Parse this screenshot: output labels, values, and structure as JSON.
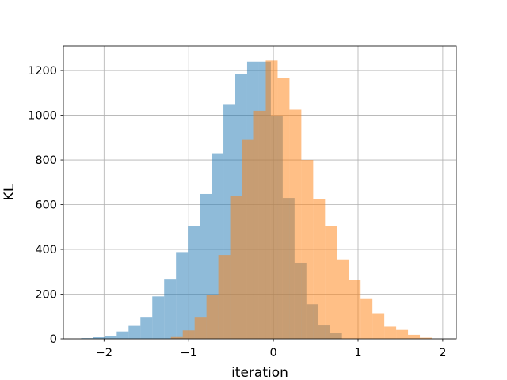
{
  "chart_data": {
    "type": "bar",
    "title": "",
    "xlabel": "iteration",
    "ylabel": "KL",
    "xlim": [
      -2.48,
      2.16
    ],
    "ylim": [
      0,
      1310
    ],
    "xticks": [
      -2,
      -1,
      0,
      1,
      2
    ],
    "xtick_labels": [
      "−2",
      "−1",
      "0",
      "1",
      "2"
    ],
    "yticks": [
      0,
      200,
      400,
      600,
      800,
      1000,
      1200
    ],
    "ytick_labels": [
      "0",
      "200",
      "400",
      "600",
      "800",
      "1000",
      "1200"
    ],
    "grid": true,
    "bar_alpha": 0.5,
    "series": [
      {
        "color": "#1f77b4",
        "bin_edges": [
          -2.27,
          -2.13,
          -1.99,
          -1.85,
          -1.71,
          -1.57,
          -1.43,
          -1.29,
          -1.15,
          -1.01,
          -0.87,
          -0.73,
          -0.59,
          -0.45,
          -0.31,
          -0.17,
          -0.03,
          0.11,
          0.25,
          0.39,
          0.53,
          0.67,
          0.81
        ],
        "counts": [
          3,
          7,
          12,
          33,
          58,
          95,
          190,
          265,
          388,
          505,
          648,
          830,
          1050,
          1185,
          1240,
          1240,
          995,
          630,
          340,
          155,
          60,
          28
        ]
      },
      {
        "color": "#ff7f0e",
        "bin_edges": [
          -1.21,
          -1.07,
          -0.93,
          -0.79,
          -0.65,
          -0.51,
          -0.37,
          -0.23,
          -0.09,
          0.05,
          0.19,
          0.33,
          0.47,
          0.61,
          0.75,
          0.89,
          1.03,
          1.17,
          1.31,
          1.45,
          1.59,
          1.73,
          1.87
        ],
        "counts": [
          8,
          38,
          95,
          195,
          375,
          640,
          890,
          1020,
          1245,
          1165,
          1025,
          800,
          625,
          505,
          355,
          262,
          178,
          115,
          55,
          40,
          18,
          5
        ]
      }
    ]
  }
}
